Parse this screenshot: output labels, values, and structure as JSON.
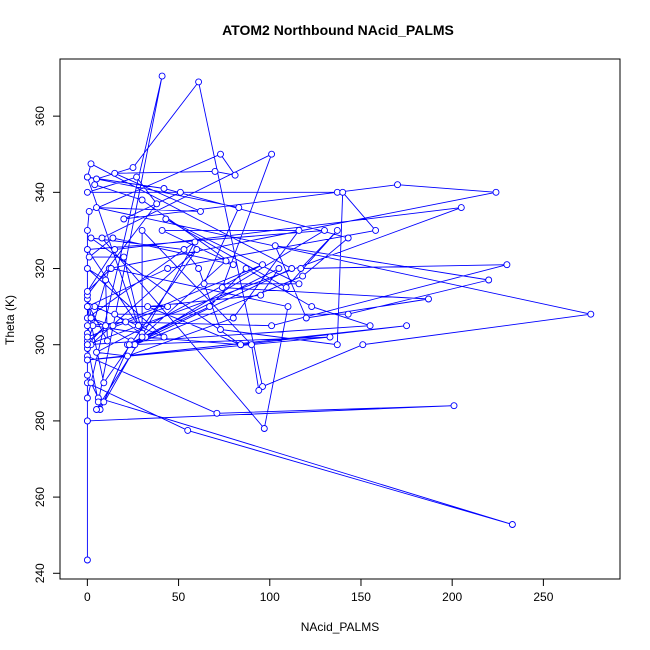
{
  "chart_data": {
    "type": "line",
    "title": "ATOM2 Northbound NAcid_PALMS",
    "xlabel": "NAcid_PALMS",
    "ylabel": "Theta (K)",
    "xlim": [
      -15,
      292
    ],
    "ylim": [
      238.5,
      375
    ],
    "xticks": [
      0,
      50,
      100,
      150,
      200,
      250
    ],
    "yticks": [
      240,
      260,
      280,
      300,
      320,
      340,
      360
    ],
    "marker": "open-circle",
    "color": "#0000ff",
    "grid": false,
    "series": [
      {
        "x": [
          0,
          0,
          55,
          233,
          6,
          0,
          0,
          2,
          41,
          6,
          0,
          10,
          1,
          0,
          4,
          42,
          0,
          10,
          11,
          1,
          3,
          30,
          20,
          1,
          14,
          80,
          30,
          4,
          5,
          25,
          61,
          96,
          151,
          276,
          5,
          62,
          15,
          70,
          81,
          73,
          1,
          0,
          0,
          59,
          7,
          24,
          2,
          14,
          96,
          5,
          22,
          80,
          116,
          41,
          76,
          25,
          112,
          2,
          0,
          28,
          0,
          130,
          26,
          118,
          143,
          42,
          0,
          83,
          64,
          116,
          43,
          109,
          137,
          117,
          230,
          101,
          21,
          0,
          0,
          0,
          0,
          0,
          201,
          71,
          0,
          0,
          0,
          44,
          1,
          0,
          0,
          38,
          27,
          0,
          137,
          51,
          20,
          170,
          224,
          12,
          0,
          155,
          123,
          87,
          67,
          22,
          105,
          95,
          33,
          84,
          2,
          53,
          61,
          73,
          137,
          140,
          158,
          44,
          0,
          9,
          60,
          2,
          0,
          205,
          15,
          0,
          13,
          110,
          97,
          8,
          101,
          74,
          187,
          120,
          103,
          220,
          143,
          15,
          32,
          84,
          175,
          0,
          133,
          23,
          9,
          5,
          30,
          30,
          90,
          94
        ],
        "y": [
          243.5,
          290,
          277.5,
          252.8,
          286,
          292,
          286,
          290,
          370.5,
          285,
          300,
          305,
          301,
          310,
          310,
          302,
          320,
          317,
          301,
          310,
          305,
          303,
          323,
          323,
          328,
          321,
          338,
          342,
          343.5,
          346.5,
          369,
          289,
          300,
          308,
          336,
          335,
          345,
          345.5,
          344.5,
          350,
          335,
          330,
          307,
          327,
          283,
          301,
          307,
          305,
          321,
          298,
          297,
          307,
          330,
          330,
          322,
          300,
          320,
          347.5,
          344,
          305,
          325,
          330,
          300,
          318,
          328,
          341,
          344,
          336,
          316,
          316,
          333,
          315,
          330,
          320,
          321,
          305,
          306,
          305,
          303,
          301,
          280,
          280,
          284,
          282,
          297,
          299,
          302,
          310,
          310,
          312,
          313,
          337,
          344,
          340,
          340,
          340,
          333,
          342,
          340,
          320,
          300,
          305,
          310,
          320,
          310,
          300,
          320,
          313,
          310,
          300,
          328,
          325,
          320,
          304,
          300,
          340,
          330,
          320,
          310,
          290,
          325,
          300,
          300,
          336,
          325,
          314,
          320,
          310,
          278,
          328,
          350,
          315,
          312,
          307,
          326,
          317,
          308,
          308,
          302,
          300,
          305,
          296,
          302,
          300,
          285,
          283,
          302,
          330,
          300,
          288
        ]
      }
    ]
  }
}
